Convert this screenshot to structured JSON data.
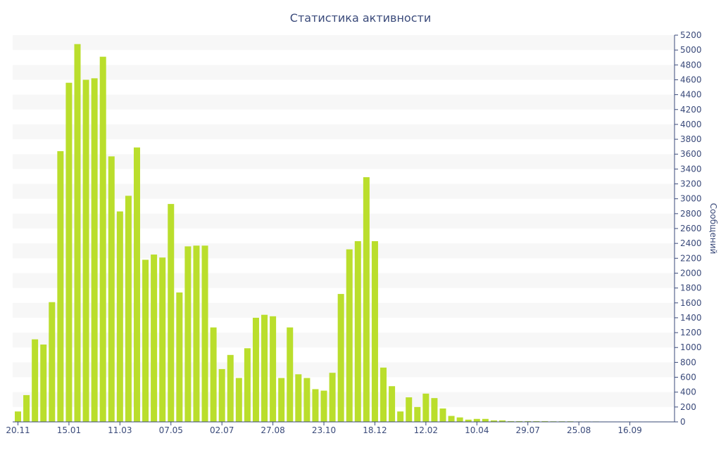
{
  "chart_data": {
    "type": "bar",
    "title": "Статистика активности",
    "xlabel": "",
    "ylabel": "Сообщений",
    "ylim": [
      0,
      5200
    ],
    "y_ticks": [
      0,
      200,
      400,
      600,
      800,
      1000,
      1200,
      1400,
      1600,
      1800,
      2000,
      2200,
      2400,
      2600,
      2800,
      3000,
      3200,
      3400,
      3600,
      3800,
      4000,
      4200,
      4400,
      4600,
      4800,
      5000,
      5200
    ],
    "y_axis_position": "right",
    "grid": "horizontal-bands",
    "colors": {
      "bar": "#bade2c",
      "axis": "#3a4a7a",
      "band": "#f7f7f7"
    },
    "x_tick_labels": [
      {
        "label": "20.11",
        "index": 0
      },
      {
        "label": "15.01",
        "index": 6
      },
      {
        "label": "11.03",
        "index": 12
      },
      {
        "label": "07.05",
        "index": 18
      },
      {
        "label": "02.07",
        "index": 24
      },
      {
        "label": "27.08",
        "index": 30
      },
      {
        "label": "23.10",
        "index": 36
      },
      {
        "label": "18.12",
        "index": 42
      },
      {
        "label": "12.02",
        "index": 48
      },
      {
        "label": "10.04",
        "index": 54
      },
      {
        "label": "29.07",
        "index": 60
      },
      {
        "label": "25.08",
        "index": 66
      },
      {
        "label": "16.09",
        "index": 72
      }
    ],
    "values": [
      140,
      360,
      1110,
      1040,
      1610,
      3640,
      4560,
      5080,
      4600,
      4620,
      4910,
      3570,
      2830,
      3040,
      3690,
      2180,
      2250,
      2210,
      2930,
      1740,
      2360,
      2370,
      2370,
      1270,
      710,
      900,
      590,
      990,
      1400,
      1440,
      1420,
      590,
      1270,
      640,
      590,
      440,
      420,
      660,
      1720,
      2320,
      2430,
      3290,
      2430,
      730,
      480,
      140,
      330,
      200,
      380,
      320,
      180,
      80,
      60,
      30,
      40,
      40,
      20,
      20,
      10,
      10,
      10,
      10,
      10,
      8,
      8,
      8,
      6,
      6,
      6,
      5,
      5,
      5,
      5,
      5,
      5,
      5,
      5,
      5
    ]
  }
}
